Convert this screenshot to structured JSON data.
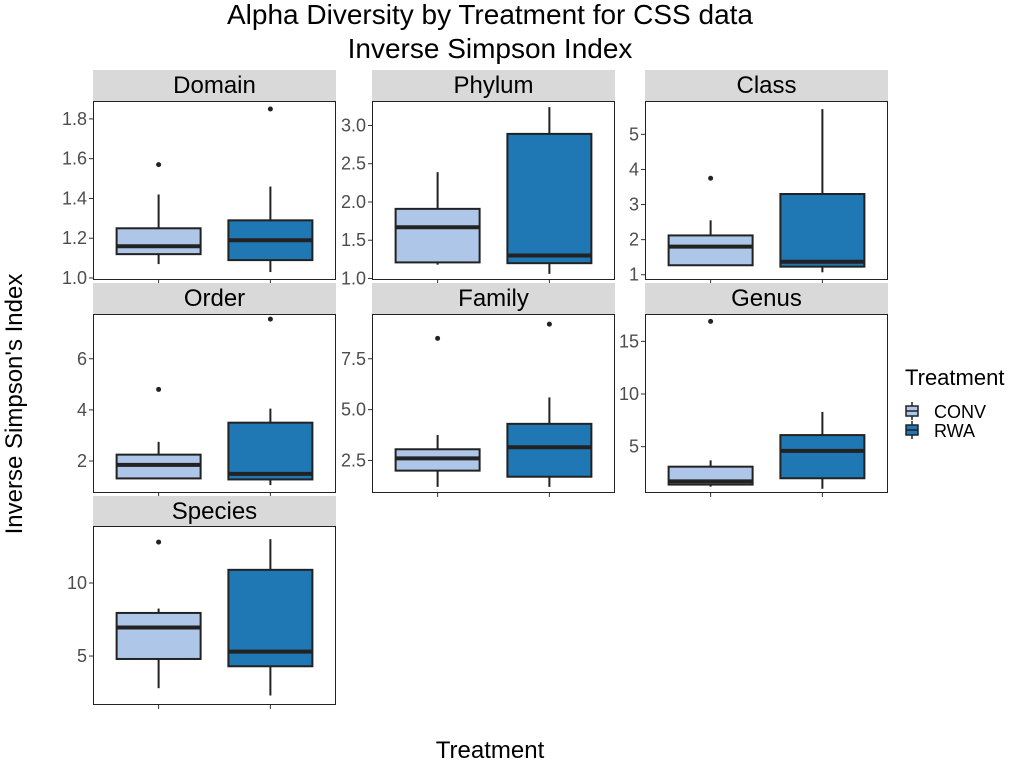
{
  "chart_data": {
    "type": "box",
    "title": "Alpha Diversity by Treatment for CSS data",
    "subtitle": "Inverse Simpson Index",
    "xlabel": "Treatment",
    "ylabel": "Inverse Simpson's Index",
    "grid": false,
    "legend": {
      "position": "right",
      "title": "Treatment",
      "entries": [
        {
          "name": "CONV",
          "color": "#aec7e8"
        },
        {
          "name": "RWA",
          "color": "#1f77b4"
        }
      ]
    },
    "groups": [
      "CONV",
      "RWA"
    ],
    "colors": {
      "CONV": "#aec7e8",
      "RWA": "#1f77b4",
      "line": "#222222",
      "strip": "#d9d9d9"
    },
    "facets": [
      {
        "name": "Domain",
        "ylim": [
          0.99,
          1.89
        ],
        "yticks": [
          1.0,
          1.2,
          1.4,
          1.6,
          1.8
        ],
        "tick_labels": [
          "1.0",
          "1.2",
          "1.4",
          "1.6",
          "1.8"
        ],
        "boxes": [
          {
            "group": "CONV",
            "min": 1.07,
            "q1": 1.12,
            "median": 1.16,
            "q3": 1.25,
            "max": 1.42,
            "outliers": [
              1.57
            ]
          },
          {
            "group": "RWA",
            "min": 1.03,
            "q1": 1.09,
            "median": 1.19,
            "q3": 1.29,
            "max": 1.46,
            "outliers": [
              1.85
            ]
          }
        ]
      },
      {
        "name": "Phylum",
        "ylim": [
          0.98,
          3.32
        ],
        "yticks": [
          1.0,
          1.5,
          2.0,
          2.5,
          3.0
        ],
        "tick_labels": [
          "1.0",
          "1.5",
          "2.0",
          "2.5",
          "3.0"
        ],
        "boxes": [
          {
            "group": "CONV",
            "min": 1.18,
            "q1": 1.21,
            "median": 1.67,
            "q3": 1.91,
            "max": 2.39,
            "outliers": []
          },
          {
            "group": "RWA",
            "min": 1.06,
            "q1": 1.2,
            "median": 1.3,
            "q3": 2.89,
            "max": 3.24,
            "outliers": []
          }
        ]
      },
      {
        "name": "Class",
        "ylim": [
          0.85,
          5.95
        ],
        "yticks": [
          1,
          2,
          3,
          4,
          5
        ],
        "tick_labels": [
          "1",
          "2",
          "3",
          "4",
          "5"
        ],
        "boxes": [
          {
            "group": "CONV",
            "min": 1.25,
            "q1": 1.27,
            "median": 1.8,
            "q3": 2.12,
            "max": 2.55,
            "outliers": [
              3.75
            ]
          },
          {
            "group": "RWA",
            "min": 1.07,
            "q1": 1.23,
            "median": 1.37,
            "q3": 3.3,
            "max": 5.72,
            "outliers": []
          }
        ]
      },
      {
        "name": "Order",
        "ylim": [
          0.75,
          7.75
        ],
        "yticks": [
          2,
          4,
          6
        ],
        "tick_labels": [
          "2",
          "4",
          "6"
        ],
        "boxes": [
          {
            "group": "CONV",
            "min": 1.3,
            "q1": 1.32,
            "median": 1.85,
            "q3": 2.25,
            "max": 2.75,
            "outliers": [
              4.8
            ]
          },
          {
            "group": "RWA",
            "min": 1.06,
            "q1": 1.28,
            "median": 1.5,
            "q3": 3.5,
            "max": 4.05,
            "outliers": [
              7.55
            ]
          }
        ]
      },
      {
        "name": "Family",
        "ylim": [
          0.9,
          9.7
        ],
        "yticks": [
          2.5,
          5.0,
          7.5
        ],
        "tick_labels": [
          "2.5",
          "5.0",
          "7.5"
        ],
        "boxes": [
          {
            "group": "CONV",
            "min": 1.2,
            "q1": 2.0,
            "median": 2.6,
            "q3": 3.05,
            "max": 3.75,
            "outliers": [
              8.5
            ]
          },
          {
            "group": "RWA",
            "min": 1.2,
            "q1": 1.7,
            "median": 3.15,
            "q3": 4.3,
            "max": 5.6,
            "outliers": [
              9.2
            ]
          }
        ]
      },
      {
        "name": "Genus",
        "ylim": [
          0.6,
          17.6
        ],
        "yticks": [
          5,
          10,
          15
        ],
        "tick_labels": [
          "5",
          "10",
          "15"
        ],
        "boxes": [
          {
            "group": "CONV",
            "min": 1.2,
            "q1": 1.4,
            "median": 1.7,
            "q3": 3.1,
            "max": 3.7,
            "outliers": [
              16.9
            ]
          },
          {
            "group": "RWA",
            "min": 1.0,
            "q1": 2.0,
            "median": 4.6,
            "q3": 6.1,
            "max": 8.3,
            "outliers": []
          }
        ]
      },
      {
        "name": "Species",
        "ylim": [
          1.65,
          13.9
        ],
        "yticks": [
          5,
          10
        ],
        "tick_labels": [
          "5",
          "10"
        ],
        "boxes": [
          {
            "group": "CONV",
            "min": 2.8,
            "q1": 4.8,
            "median": 6.95,
            "q3": 7.95,
            "max": 8.25,
            "outliers": [
              12.8
            ]
          },
          {
            "group": "RWA",
            "min": 2.3,
            "q1": 4.3,
            "median": 5.3,
            "q3": 10.9,
            "max": 13.0,
            "outliers": []
          }
        ]
      }
    ]
  }
}
